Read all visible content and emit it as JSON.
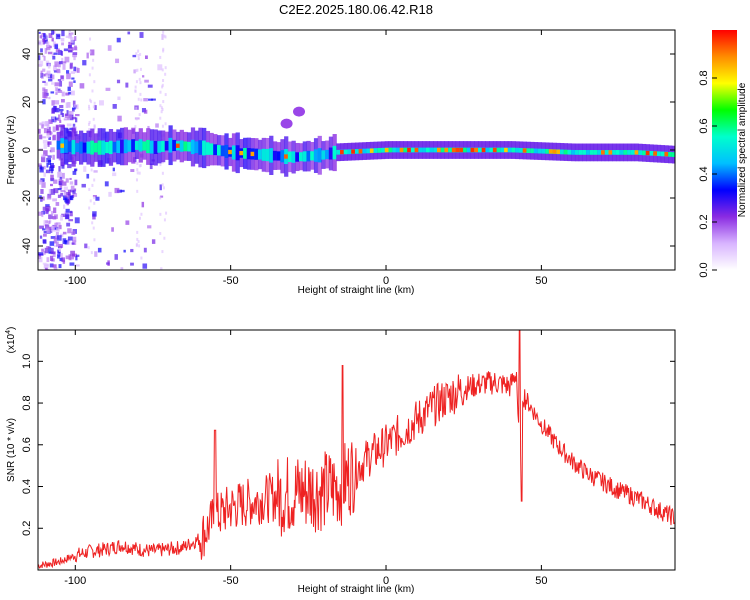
{
  "chart_data": [
    {
      "type": "heatmap",
      "title": "C2E2.2025.180.06.42.R18",
      "xlabel": "Height of straight line (km)",
      "ylabel": "Frequency (Hz)",
      "xlim": [
        -112,
        93
      ],
      "ylim": [
        -50,
        50
      ],
      "xticks": [
        -100,
        -50,
        0,
        50
      ],
      "yticks": [
        -40,
        -20,
        0,
        20,
        40
      ],
      "colorbar": {
        "label": "Normalized spectral amplitude",
        "range": [
          0,
          1
        ],
        "ticks": [
          0.0,
          0.2,
          0.4,
          0.6,
          0.8
        ],
        "tick_labels": [
          "0.0",
          "0.2",
          "0.4",
          "0.6",
          "0.8"
        ],
        "colormap": [
          "#ffffff",
          "#d8b4ff",
          "#8a2be2",
          "#0000ff",
          "#00bfff",
          "#00ffcc",
          "#00ff00",
          "#ffff00",
          "#ff8c00",
          "#ff0000"
        ]
      },
      "ridge": {
        "x": [
          -106,
          -100,
          -90,
          -80,
          -75,
          -70,
          -60,
          -50,
          -40,
          -30,
          -20,
          -17,
          0,
          20,
          40,
          60,
          80,
          93
        ],
        "frequency_hz": [
          2,
          1,
          1,
          2,
          1,
          2,
          1,
          -1,
          -2,
          -3,
          -2,
          -1,
          0,
          0,
          0,
          -1,
          -1,
          -2
        ]
      },
      "clusters": [
        {
          "x": -32,
          "frequency_hz": 11
        },
        {
          "x": -28,
          "frequency_hz": 16
        }
      ]
    },
    {
      "type": "line",
      "xlabel": "Height of straight line (km)",
      "ylabel": "SNR (10 * v/v)",
      "y_multiplier_label": "(x10",
      "y_multiplier_exponent": "4",
      "y_multiplier_close": ")",
      "xlim": [
        -112,
        93
      ],
      "ylim": [
        0,
        1.15
      ],
      "xticks": [
        -100,
        -50,
        0,
        50
      ],
      "yticks": [
        0.2,
        0.4,
        0.6,
        0.8,
        1.0
      ],
      "color": "#ee2222",
      "series": [
        {
          "x": [
            -112,
            -105,
            -100,
            -95,
            -90,
            -85,
            -80,
            -75,
            -70,
            -65,
            -60,
            -55,
            -50,
            -45,
            -40,
            -35,
            -30,
            -25,
            -20,
            -15,
            -10,
            -5,
            0,
            5,
            10,
            15,
            20,
            25,
            30,
            35,
            40,
            42,
            43,
            44,
            45,
            50,
            55,
            60,
            65,
            70,
            75,
            80,
            85,
            90,
            93
          ],
          "y": [
            0.02,
            0.04,
            0.07,
            0.09,
            0.1,
            0.12,
            0.1,
            0.09,
            0.1,
            0.11,
            0.15,
            0.25,
            0.3,
            0.32,
            0.34,
            0.35,
            0.37,
            0.38,
            0.38,
            0.4,
            0.48,
            0.55,
            0.6,
            0.66,
            0.72,
            0.78,
            0.83,
            0.87,
            0.89,
            0.9,
            0.88,
            0.95,
            0.5,
            0.85,
            0.82,
            0.7,
            0.6,
            0.52,
            0.46,
            0.42,
            0.38,
            0.35,
            0.31,
            0.27,
            0.25
          ]
        }
      ],
      "spikes": [
        {
          "x": -55,
          "y": 0.67
        },
        {
          "x": -14,
          "y": 0.98
        },
        {
          "x": 43,
          "y": 1.17
        },
        {
          "x": 43.6,
          "y": 0.33
        }
      ]
    }
  ]
}
